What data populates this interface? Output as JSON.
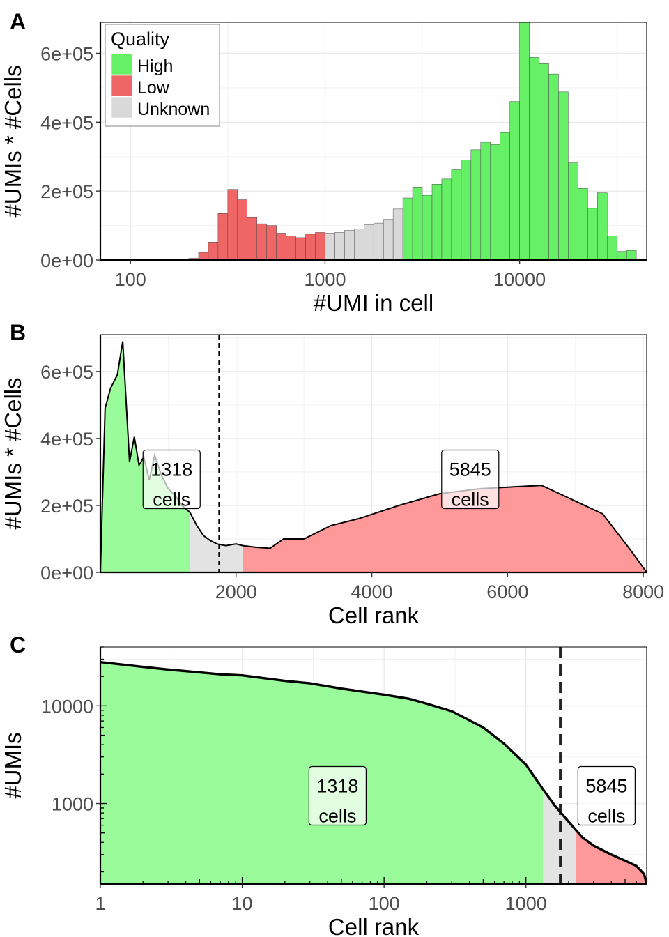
{
  "chart_data": [
    {
      "panel": "A",
      "type": "bar",
      "xlabel": "#UMI in cell",
      "ylabel": "#UMIs * #Cells",
      "x_scale": "log10",
      "xlim": [
        70,
        45000
      ],
      "ylim": [
        0,
        690000
      ],
      "xticks": [
        100,
        1000,
        10000
      ],
      "xtick_labels": [
        "100",
        "1000",
        "10000"
      ],
      "yticks": [
        0,
        200000,
        400000,
        600000
      ],
      "ytick_labels": [
        "0e+00",
        "2e+05",
        "4e+05",
        "6e+05"
      ],
      "grid": true,
      "legend": {
        "title": "Quality",
        "position": "top-left",
        "entries": [
          {
            "label": "High",
            "color": "#66f066"
          },
          {
            "label": "Low",
            "color": "#f06666"
          },
          {
            "label": "Unknown",
            "color": "#d9d9d9"
          }
        ]
      },
      "bins": {
        "log10_start": 2.0,
        "log10_width": 0.05,
        "values": [
          0,
          0,
          0,
          0,
          0,
          0,
          5000,
          22000,
          52000,
          135000,
          205000,
          175000,
          125000,
          105000,
          100000,
          78000,
          70000,
          65000,
          75000,
          80000,
          78000,
          80000,
          86000,
          90000,
          102000,
          107000,
          118000,
          148000,
          180000,
          212000,
          188000,
          220000,
          235000,
          262000,
          290000,
          320000,
          342000,
          335000,
          370000,
          460000,
          690000,
          588000,
          570000,
          540000,
          488000,
          282000,
          208000,
          150000,
          195000,
          70000,
          25000,
          28000
        ],
        "qualities": [
          "Low",
          "Low",
          "Low",
          "Low",
          "Low",
          "Low",
          "Low",
          "Low",
          "Low",
          "Low",
          "Low",
          "Low",
          "Low",
          "Low",
          "Low",
          "Low",
          "Low",
          "Low",
          "Low",
          "Low",
          "Unknown",
          "Unknown",
          "Unknown",
          "Unknown",
          "Unknown",
          "Unknown",
          "Unknown",
          "Unknown",
          "High",
          "High",
          "High",
          "High",
          "High",
          "High",
          "High",
          "High",
          "High",
          "High",
          "High",
          "High",
          "High",
          "High",
          "High",
          "High",
          "High",
          "High",
          "High",
          "High",
          "High",
          "High",
          "High",
          "High"
        ]
      }
    },
    {
      "panel": "B",
      "type": "area",
      "xlabel": "Cell rank",
      "ylabel": "#UMIs * #Cells",
      "xlim": [
        0,
        8050
      ],
      "ylim": [
        0,
        710000
      ],
      "xticks": [
        2000,
        4000,
        6000,
        8000
      ],
      "xtick_labels": [
        "2000",
        "4000",
        "6000",
        "8000"
      ],
      "yticks": [
        0,
        200000,
        400000,
        600000
      ],
      "ytick_labels": [
        "0e+00",
        "2e+05",
        "4e+05",
        "6e+05"
      ],
      "grid": true,
      "threshold_x": 1750,
      "regions": [
        {
          "from": 0,
          "to": 1318,
          "quality": "High",
          "color": "#99fb99"
        },
        {
          "from": 1318,
          "to": 2100,
          "quality": "Unknown",
          "color": "#e3e3e3"
        },
        {
          "from": 2100,
          "to": 8050,
          "quality": "Low",
          "color": "#ff9999"
        }
      ],
      "curve": {
        "x": [
          0,
          70,
          150,
          250,
          330,
          430,
          500,
          570,
          640,
          720,
          800,
          900,
          1000,
          1100,
          1200,
          1318,
          1420,
          1520,
          1620,
          1720,
          1850,
          2000,
          2100,
          2300,
          2500,
          2700,
          3000,
          3400,
          3800,
          4400,
          5000,
          5600,
          6500,
          7400,
          7800,
          8050
        ],
        "y": [
          0,
          490000,
          550000,
          590000,
          690000,
          330000,
          405000,
          320000,
          345000,
          275000,
          350000,
          290000,
          250000,
          230000,
          200000,
          180000,
          140000,
          110000,
          95000,
          85000,
          80000,
          85000,
          80000,
          75000,
          72000,
          100000,
          100000,
          140000,
          160000,
          200000,
          235000,
          250000,
          260000,
          175000,
          70000,
          0
        ]
      },
      "annotations": [
        {
          "text_lines": [
            "1318",
            "cells"
          ],
          "x": 1050,
          "y": 255000
        },
        {
          "text_lines": [
            "5845",
            "cells"
          ],
          "x": 5450,
          "y": 255000
        }
      ]
    },
    {
      "panel": "C",
      "type": "area",
      "xlabel": "Cell rank",
      "ylabel": "#UMIs",
      "x_scale": "log10",
      "y_scale": "log10",
      "xlim": [
        1,
        7100
      ],
      "ylim": [
        150,
        40000
      ],
      "xticks": [
        1,
        10,
        100,
        1000
      ],
      "xtick_labels": [
        "1",
        "10",
        "100",
        "1000"
      ],
      "yticks": [
        1000,
        10000
      ],
      "ytick_labels": [
        "1000",
        "10000"
      ],
      "grid": true,
      "threshold_x": 1750,
      "regions": [
        {
          "from": 1,
          "to": 1318,
          "quality": "High",
          "color": "#99fb99"
        },
        {
          "from": 1318,
          "to": 2250,
          "quality": "Unknown",
          "color": "#e3e3e3"
        },
        {
          "from": 2250,
          "to": 7100,
          "quality": "Low",
          "color": "#ff9999"
        }
      ],
      "curve": {
        "x": [
          1,
          2,
          3,
          5,
          7,
          10,
          15,
          20,
          30,
          50,
          70,
          100,
          150,
          200,
          300,
          500,
          700,
          1000,
          1318,
          1600,
          2000,
          2500,
          3000,
          4000,
          5000,
          6000,
          6800,
          7100
        ],
        "y": [
          28000,
          25000,
          23500,
          22000,
          21000,
          20500,
          19000,
          18000,
          17000,
          15000,
          14000,
          13000,
          11800,
          10500,
          8800,
          6000,
          4100,
          2500,
          1400,
          950,
          650,
          450,
          370,
          300,
          260,
          230,
          190,
          150
        ]
      },
      "annotations": [
        {
          "text_lines": [
            "1318",
            "cells"
          ],
          "x": 47,
          "y": 1000
        },
        {
          "text_lines": [
            "5845",
            "cells"
          ],
          "x": 3700,
          "y": 1000
        }
      ]
    }
  ],
  "panels": [
    {
      "letter": "A"
    },
    {
      "letter": "B"
    },
    {
      "letter": "C"
    }
  ]
}
